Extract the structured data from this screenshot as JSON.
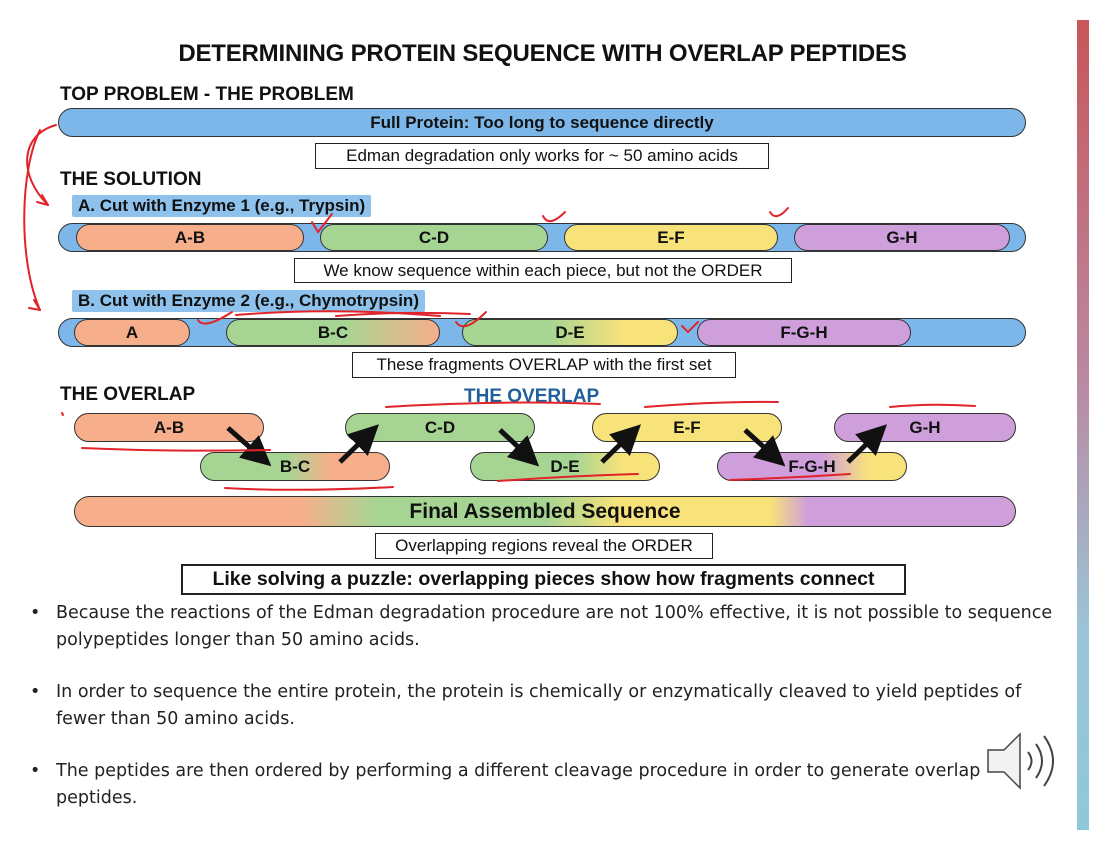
{
  "title": "DETERMINING PROTEIN SEQUENCE WITH OVERLAP PEPTIDES",
  "problem": {
    "heading": "TOP PROBLEM - THE PROBLEM",
    "bar_label": "Full Protein: Too long to sequence directly",
    "note": "Edman degradation only works for ~ 50 amino acids"
  },
  "solution": {
    "heading": "THE SOLUTION",
    "enzyme1": {
      "label": "A. Cut with Enzyme 1 (e.g., Trypsin)",
      "fragments": [
        "A-B",
        "C-D",
        "E-F",
        "G-H"
      ],
      "note": "We know sequence within each piece, but not the ORDER"
    },
    "enzyme2": {
      "label": "B. Cut with Enzyme 2 (e.g., Chymotrypsin)",
      "fragments": [
        "A",
        "B-C",
        "D-E",
        "F-G-H"
      ],
      "note": "These fragments OVERLAP with the first set"
    }
  },
  "overlap": {
    "heading": "THE OVERLAP",
    "center_heading": "THE OVERLAP",
    "top_row": [
      "A-B",
      "C-D",
      "E-F",
      "G-H"
    ],
    "bottom_row": [
      "B-C",
      "D-E",
      "F-G-H"
    ],
    "final_label": "Final Assembled Sequence",
    "note": "Overlapping regions reveal the ORDER",
    "puzzle_note": "Like solving a puzzle: overlapping pieces show how fragments connect"
  },
  "bullets": [
    "Because the reactions of the Edman degradation procedure are not 100% effective, it is not possible to sequence polypeptides longer than 50 amino acids.",
    "In order to sequence the entire protein, the protein is chemically or enzymatically cleaved to yield peptides of fewer than 50 amino acids.",
    "The peptides are then ordered by performing a different cleavage procedure in order to generate overlap peptides."
  ],
  "colors": {
    "protein": "#7db7ea",
    "fragment_ab": "#f7ae8a",
    "fragment_cd": "#a6d593",
    "fragment_ef": "#f8e27a",
    "fragment_gh": "#cf9fdc",
    "annotation_ink": "#e0242a",
    "accent_bar": "#c7575a"
  },
  "icons": [
    "speaker-icon"
  ]
}
